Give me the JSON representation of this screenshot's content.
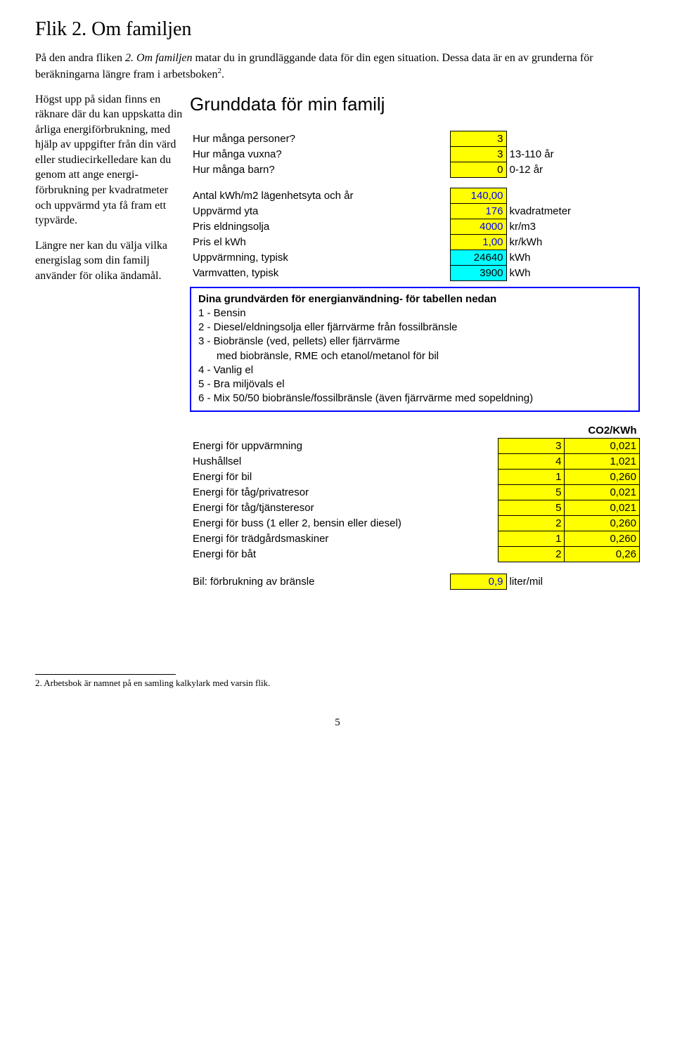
{
  "page_title": "Flik 2. Om familjen",
  "intro": {
    "pre": "På den andra fliken ",
    "italic": "2. Om familjen",
    "post": " matar du in grundläggande data för din egen situation. Dessa data är en av grunderna för beräkningarna längre fram i arbetsboken",
    "sup": "2",
    "end": "."
  },
  "left": {
    "p1": "Högst upp på sidan finns en räknare där du kan uppskatta din årliga energiförbrukning, med hjälp av uppgifter från din värd eller studie­cirkelledare kan du genom att ange energi­förbrukning per kvadratmeter och uppvärmd yta få fram ett typvärde.",
    "p2": "Längre ner kan du välja vilka energislag som din familj använder för olika ändamål."
  },
  "section_heading": "Grunddata för min familj",
  "rows_top": [
    {
      "label": "Hur många personer?",
      "value": "3",
      "unit": "",
      "style": "yellow"
    },
    {
      "label": "Hur många vuxna?",
      "value": "3",
      "unit": "13-110 år",
      "style": "yellow"
    },
    {
      "label": "Hur många barn?",
      "value": "0",
      "unit": "0-12 år",
      "style": "yellow"
    }
  ],
  "rows_mid": [
    {
      "label": "Antal kWh/m2 lägenhetsyta och år",
      "value": "140,00",
      "unit": "",
      "style": "yellow",
      "blue": true
    },
    {
      "label": "Uppvärmd yta",
      "value": "176",
      "unit": "kvadratmeter",
      "style": "yellow",
      "blue": true
    },
    {
      "label": "Pris eldningsolja",
      "value": "4000",
      "unit": "kr/m3",
      "style": "yellow",
      "blue": true
    },
    {
      "label": "Pris el kWh",
      "value": "1,00",
      "unit": "kr/kWh",
      "style": "yellow",
      "blue": true
    },
    {
      "label": "Uppvärmning, typisk",
      "value": "24640",
      "unit": "kWh",
      "style": "cyan"
    },
    {
      "label": "Varmvatten, typisk",
      "value": "3900",
      "unit": "kWh",
      "style": "cyan"
    }
  ],
  "info_box": {
    "title": "Dina grundvärden för energianvändning- för tabellen nedan",
    "lines": [
      "1 - Bensin",
      "2 - Diesel/eldningsolja eller fjärrvärme från fossilbränsle",
      "3 - Biobränsle (ved, pellets) eller fjärrvärme"
    ],
    "indent": "med biobränsle, RME och etanol/metanol för bil",
    "lines2": [
      "4 - Vanlig el",
      "5 - Bra miljövals el",
      "6 - Mix 50/50 biobränsle/fossilbränsle (även fjärrvärme med sopeldning)"
    ]
  },
  "co2_header": "CO2/KWh",
  "rows_energy": [
    {
      "label": "Energi för uppvärmning",
      "value": "3",
      "co2": "0,021"
    },
    {
      "label": "Hushållsel",
      "value": "4",
      "co2": "1,021"
    },
    {
      "label": "Energi för bil",
      "value": "1",
      "co2": "0,260"
    },
    {
      "label": "Energi för tåg/privatresor",
      "value": "5",
      "co2": "0,021"
    },
    {
      "label": "Energi för tåg/tjänsteresor",
      "value": "5",
      "co2": "0,021"
    },
    {
      "label": "Energi för buss (1 eller 2, bensin eller diesel)",
      "value": "2",
      "co2": "0,260"
    },
    {
      "label": "Energi för trädgårdsmaskiner",
      "value": "1",
      "co2": "0,260"
    },
    {
      "label": "Energi för båt",
      "value": "2",
      "co2": "0,26"
    }
  ],
  "fuel_row": {
    "label": "Bil: förbrukning av bränsle",
    "value": "0,9",
    "unit": "liter/mil"
  },
  "footnote": "2. Arbetsbok är namnet på en samling kalkylark med varsin flik.",
  "page_number": "5"
}
